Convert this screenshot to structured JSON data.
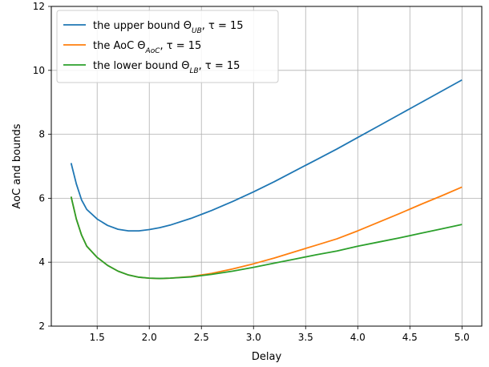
{
  "chart_data": {
    "type": "line",
    "title": "",
    "xlabel": "Delay",
    "ylabel": "AoC and bounds",
    "xlim": [
      1.06,
      5.19
    ],
    "ylim": [
      2,
      12
    ],
    "xticks": [
      "1.5",
      "2.0",
      "2.5",
      "3.0",
      "3.5",
      "4.0",
      "4.5",
      "5.0"
    ],
    "yticks": [
      "2",
      "4",
      "6",
      "8",
      "10",
      "12"
    ],
    "grid": true,
    "legend_position": "top-left",
    "series": [
      {
        "name": "upper",
        "label_parts": [
          {
            "t": "the upper bound Θ"
          },
          {
            "t": "UB",
            "sub": true
          },
          {
            "t": ", τ = 15"
          }
        ],
        "color": "#1f77b4",
        "points": [
          [
            1.25,
            7.1
          ],
          [
            1.3,
            6.45
          ],
          [
            1.35,
            5.95
          ],
          [
            1.4,
            5.65
          ],
          [
            1.5,
            5.35
          ],
          [
            1.6,
            5.15
          ],
          [
            1.7,
            5.03
          ],
          [
            1.8,
            4.98
          ],
          [
            1.9,
            4.98
          ],
          [
            2.0,
            5.02
          ],
          [
            2.1,
            5.08
          ],
          [
            2.2,
            5.16
          ],
          [
            2.4,
            5.37
          ],
          [
            2.6,
            5.62
          ],
          [
            2.8,
            5.9
          ],
          [
            3.0,
            6.2
          ],
          [
            3.2,
            6.52
          ],
          [
            3.4,
            6.86
          ],
          [
            3.6,
            7.2
          ],
          [
            3.8,
            7.54
          ],
          [
            4.0,
            7.9
          ],
          [
            4.2,
            8.26
          ],
          [
            4.4,
            8.62
          ],
          [
            4.6,
            8.98
          ],
          [
            4.8,
            9.34
          ],
          [
            5.0,
            9.7
          ]
        ]
      },
      {
        "name": "aoc",
        "label_parts": [
          {
            "t": "the AoC Θ"
          },
          {
            "t": "AoC",
            "sub": true
          },
          {
            "t": ", τ = 15"
          }
        ],
        "color": "#ff7f0e",
        "points": [
          [
            1.25,
            6.05
          ],
          [
            1.3,
            5.35
          ],
          [
            1.35,
            4.85
          ],
          [
            1.4,
            4.5
          ],
          [
            1.5,
            4.15
          ],
          [
            1.6,
            3.9
          ],
          [
            1.7,
            3.72
          ],
          [
            1.8,
            3.6
          ],
          [
            1.9,
            3.53
          ],
          [
            2.0,
            3.5
          ],
          [
            2.1,
            3.49
          ],
          [
            2.2,
            3.5
          ],
          [
            2.4,
            3.55
          ],
          [
            2.6,
            3.65
          ],
          [
            2.8,
            3.79
          ],
          [
            3.0,
            3.95
          ],
          [
            3.2,
            4.13
          ],
          [
            3.4,
            4.33
          ],
          [
            3.6,
            4.53
          ],
          [
            3.8,
            4.73
          ],
          [
            4.0,
            4.98
          ],
          [
            4.2,
            5.25
          ],
          [
            4.4,
            5.52
          ],
          [
            4.6,
            5.8
          ],
          [
            4.8,
            6.07
          ],
          [
            5.0,
            6.35
          ]
        ]
      },
      {
        "name": "lower",
        "label_parts": [
          {
            "t": "the lower bound Θ"
          },
          {
            "t": "LB",
            "sub": true
          },
          {
            "t": ", τ = 15"
          }
        ],
        "color": "#2ca02c",
        "points": [
          [
            1.25,
            6.05
          ],
          [
            1.3,
            5.35
          ],
          [
            1.35,
            4.85
          ],
          [
            1.4,
            4.5
          ],
          [
            1.5,
            4.15
          ],
          [
            1.6,
            3.9
          ],
          [
            1.7,
            3.72
          ],
          [
            1.8,
            3.6
          ],
          [
            1.9,
            3.53
          ],
          [
            2.0,
            3.5
          ],
          [
            2.1,
            3.49
          ],
          [
            2.2,
            3.5
          ],
          [
            2.4,
            3.54
          ],
          [
            2.6,
            3.62
          ],
          [
            2.8,
            3.72
          ],
          [
            3.0,
            3.84
          ],
          [
            3.2,
            3.97
          ],
          [
            3.4,
            4.1
          ],
          [
            3.6,
            4.23
          ],
          [
            3.8,
            4.35
          ],
          [
            4.0,
            4.5
          ],
          [
            4.2,
            4.63
          ],
          [
            4.4,
            4.76
          ],
          [
            4.6,
            4.9
          ],
          [
            4.8,
            5.04
          ],
          [
            5.0,
            5.18
          ]
        ]
      }
    ]
  }
}
